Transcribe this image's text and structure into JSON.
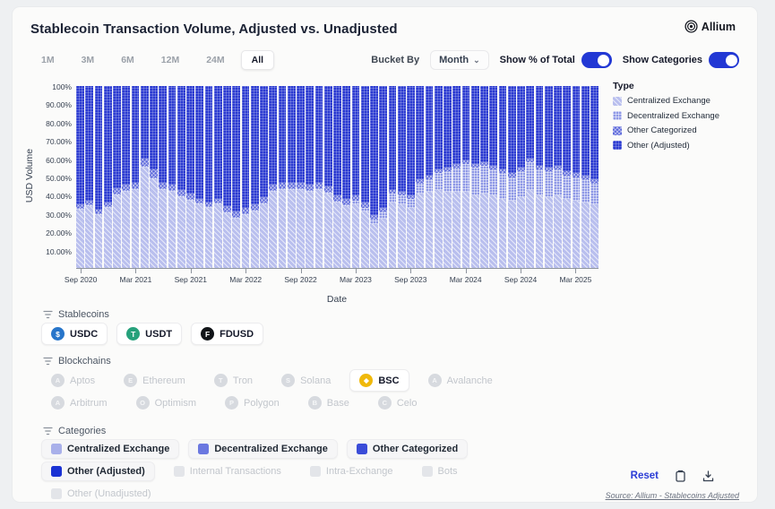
{
  "header": {
    "title": "Stablecoin Transaction Volume, Adjusted vs. Unadjusted",
    "brand": "Allium"
  },
  "controls": {
    "ranges": [
      "1M",
      "3M",
      "6M",
      "12M",
      "24M",
      "All"
    ],
    "active_range": "All",
    "bucket_by_label": "Bucket By",
    "bucket_value": "Month",
    "toggles": [
      {
        "label": "Show % of Total",
        "on": true
      },
      {
        "label": "Show Categories",
        "on": true
      }
    ]
  },
  "legend": {
    "title": "Type",
    "items": [
      {
        "key": "cex",
        "label": "Centralized Exchange",
        "color": "#b9bfee"
      },
      {
        "key": "dex",
        "label": "Decentralized Exchange",
        "color": "#8f99e6"
      },
      {
        "key": "oc",
        "label": "Other Categorized",
        "color": "#5a66da"
      },
      {
        "key": "oa",
        "label": "Other (Adjusted)",
        "color": "#2c3bd1"
      }
    ]
  },
  "chart_data": {
    "type": "bar",
    "stacked": true,
    "percent_of_total": true,
    "title": "Stablecoin Transaction Volume, Adjusted vs. Unadjusted",
    "xlabel": "Date",
    "ylabel": "USD Volume",
    "ylim": [
      0,
      100
    ],
    "ytick_values": [
      100,
      90,
      80,
      70,
      60,
      50,
      40,
      30,
      20,
      10
    ],
    "ytick_labels": [
      "100%",
      "90.00%",
      "80.00%",
      "70.00%",
      "60.00%",
      "50.00%",
      "40.00%",
      "30.00%",
      "20.00%",
      "10.00%"
    ],
    "x": [
      "Sep 2020",
      "Oct 2020",
      "Nov 2020",
      "Dec 2020",
      "Jan 2021",
      "Feb 2021",
      "Mar 2021",
      "Apr 2021",
      "May 2021",
      "Jun 2021",
      "Jul 2021",
      "Aug 2021",
      "Sep 2021",
      "Oct 2021",
      "Nov 2021",
      "Dec 2021",
      "Jan 2022",
      "Feb 2022",
      "Mar 2022",
      "Apr 2022",
      "May 2022",
      "Jun 2022",
      "Jul 2022",
      "Aug 2022",
      "Sep 2022",
      "Oct 2022",
      "Nov 2022",
      "Dec 2022",
      "Jan 2023",
      "Feb 2023",
      "Mar 2023",
      "Apr 2023",
      "May 2023",
      "Jun 2023",
      "Jul 2023",
      "Aug 2023",
      "Sep 2023",
      "Oct 2023",
      "Nov 2023",
      "Dec 2023",
      "Jan 2024",
      "Feb 2024",
      "Mar 2024",
      "Apr 2024",
      "May 2024",
      "Jun 2024",
      "Jul 2024",
      "Aug 2024",
      "Sep 2024",
      "Oct 2024",
      "Nov 2024",
      "Dec 2024",
      "Jan 2025",
      "Feb 2025",
      "Mar 2025",
      "Apr 2025",
      "May 2025"
    ],
    "xtick_indices": [
      0,
      6,
      12,
      18,
      24,
      30,
      36,
      42,
      48,
      54
    ],
    "series": [
      {
        "key": "cex",
        "name": "Centralized Exchange",
        "values": [
          32,
          34,
          29,
          33,
          40,
          42,
          43,
          55,
          49,
          43,
          42,
          39,
          37,
          35,
          33,
          35,
          30,
          27,
          29,
          31,
          35,
          42,
          43,
          43,
          43,
          42,
          43,
          41,
          36,
          34,
          35,
          31,
          24,
          27,
          36,
          35,
          33,
          41,
          42,
          43,
          42,
          42,
          42,
          40,
          41,
          40,
          38,
          37,
          39,
          43,
          40,
          39,
          40,
          38,
          37,
          36,
          35
        ]
      },
      {
        "key": "dex",
        "name": "Decentralized Exchange",
        "values": [
          1,
          1,
          1,
          1,
          1,
          1,
          1,
          1,
          1,
          1,
          1,
          1,
          1,
          1,
          1,
          1,
          1,
          1,
          1,
          1,
          1,
          1,
          1,
          1,
          1,
          1,
          1,
          1,
          1,
          1,
          2,
          2,
          3,
          4,
          5,
          5,
          5,
          6,
          7,
          9,
          11,
          13,
          15,
          15,
          15,
          14,
          14,
          13,
          14,
          15,
          14,
          14,
          14,
          13,
          13,
          13,
          12
        ]
      },
      {
        "key": "oc",
        "name": "Other Categorized",
        "values": [
          2,
          2,
          2,
          2,
          3,
          3,
          3,
          4,
          4,
          3,
          3,
          3,
          3,
          2,
          2,
          2,
          3,
          3,
          3,
          3,
          3,
          3,
          3,
          3,
          3,
          3,
          3,
          3,
          3,
          3,
          3,
          3,
          2,
          2,
          2,
          2,
          2,
          2,
          2,
          2,
          2,
          2,
          2,
          2,
          2,
          2,
          2,
          2,
          2,
          2,
          2,
          2,
          2,
          2,
          2,
          2,
          2
        ]
      },
      {
        "key": "oa",
        "name": "Other (Adjusted)",
        "values": [
          65,
          63,
          68,
          64,
          56,
          54,
          53,
          40,
          46,
          53,
          54,
          57,
          59,
          62,
          64,
          62,
          66,
          69,
          67,
          65,
          61,
          54,
          53,
          53,
          53,
          54,
          53,
          55,
          60,
          62,
          60,
          64,
          71,
          67,
          57,
          58,
          60,
          51,
          49,
          46,
          45,
          43,
          41,
          43,
          42,
          44,
          46,
          48,
          45,
          40,
          44,
          45,
          44,
          47,
          48,
          49,
          51
        ]
      }
    ],
    "legend_position": "right",
    "grid": false
  },
  "filters": {
    "stablecoins": {
      "label": "Stablecoins",
      "items": [
        {
          "label": "USDC",
          "icon": "usdc-icon",
          "icon_color": "#2775ca",
          "glyph": "$",
          "active": true
        },
        {
          "label": "USDT",
          "icon": "usdt-icon",
          "icon_color": "#26a17b",
          "glyph": "T",
          "active": true
        },
        {
          "label": "FDUSD",
          "icon": "fdusd-icon",
          "icon_color": "#111418",
          "glyph": "F",
          "active": true
        }
      ]
    },
    "blockchains": {
      "label": "Blockchains",
      "rows": [
        [
          {
            "label": "Aptos",
            "glyph": "A",
            "active": false
          },
          {
            "label": "Ethereum",
            "glyph": "E",
            "active": false
          },
          {
            "label": "Tron",
            "glyph": "T",
            "active": false
          },
          {
            "label": "Solana",
            "glyph": "S",
            "active": false
          },
          {
            "label": "BSC",
            "glyph": "◆",
            "icon_color": "#f0b90b",
            "active": true
          },
          {
            "label": "Avalanche",
            "glyph": "A",
            "active": false
          }
        ],
        [
          {
            "label": "Arbitrum",
            "glyph": "A",
            "active": false
          },
          {
            "label": "Optimism",
            "glyph": "O",
            "active": false
          },
          {
            "label": "Polygon",
            "glyph": "P",
            "active": false
          },
          {
            "label": "Base",
            "glyph": "B",
            "active": false
          },
          {
            "label": "Celo",
            "glyph": "C",
            "active": false
          }
        ]
      ]
    },
    "categories": {
      "label": "Categories",
      "rows": [
        [
          {
            "label": "Centralized Exchange",
            "swatch": "#a9b0ea",
            "active": true
          },
          {
            "label": "Decentralized Exchange",
            "swatch": "#6b78e0",
            "active": true
          },
          {
            "label": "Other Categorized",
            "swatch": "#3a4cd8",
            "active": true
          }
        ],
        [
          {
            "label": "Other (Adjusted)",
            "swatch": "#1a32d4",
            "active": true
          },
          {
            "label": "Internal Transactions",
            "active": false
          },
          {
            "label": "Intra-Exchange",
            "active": false
          },
          {
            "label": "Bots",
            "active": false
          }
        ],
        [
          {
            "label": "Other (Unadjusted)",
            "active": false
          }
        ]
      ]
    }
  },
  "footer": {
    "reset_label": "Reset",
    "source": "Source: Allium - Stablecoins Adjusted"
  },
  "colors": {
    "accent_blue": "#2238d4",
    "bar_cex": "#b9bfee",
    "bar_dex": "#8f99e6",
    "bar_oc": "#5a66da",
    "bar_oa": "#2c3bd1",
    "bsc_yellow": "#f0b90b",
    "usdc_blue": "#2775ca",
    "usdt_green": "#26a17b"
  }
}
